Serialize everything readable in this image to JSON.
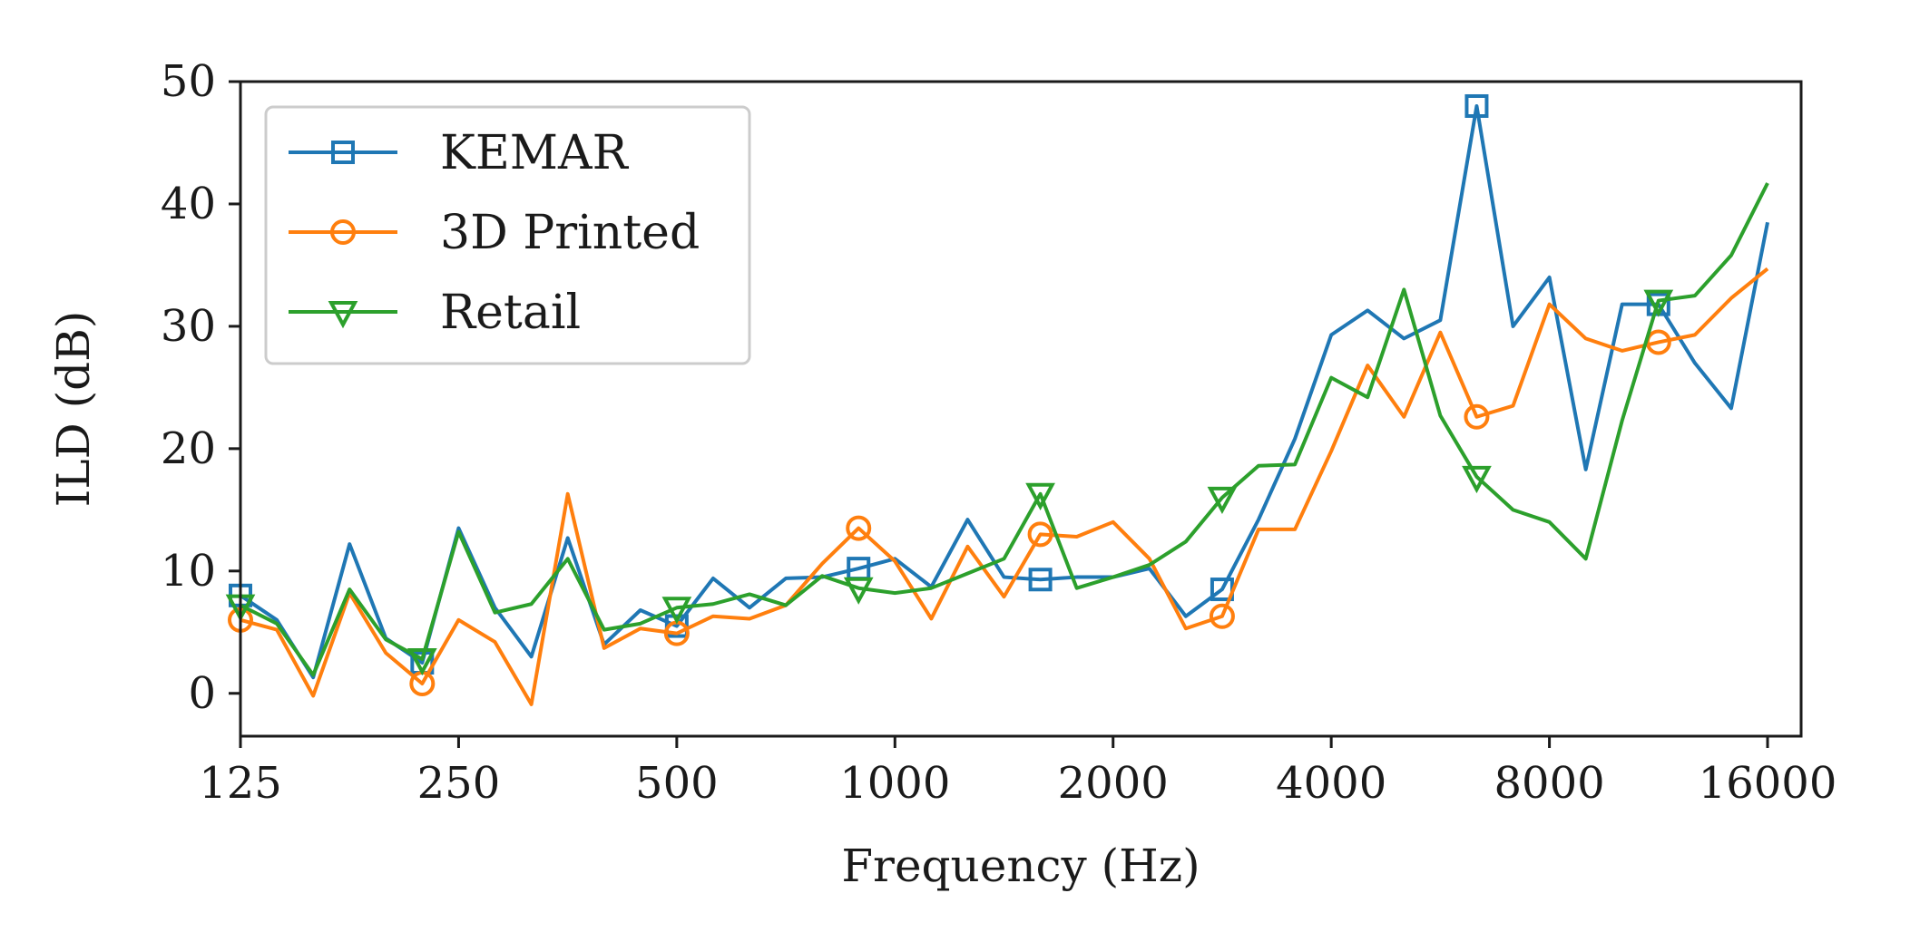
{
  "chart_data": {
    "type": "line",
    "xlabel": "Frequency (Hz)",
    "ylabel": "ILD (dB)",
    "x_scale": "log2",
    "xlim": [
      125,
      17800
    ],
    "ylim": [
      -3.5,
      50
    ],
    "x_ticks": [
      125,
      250,
      500,
      1000,
      2000,
      4000,
      8000,
      16000
    ],
    "y_ticks": [
      0,
      10,
      20,
      30,
      40,
      50
    ],
    "grid": false,
    "legend_position": "top-left",
    "x": [
      125,
      140.3,
      157.5,
      176.8,
      198.4,
      222.7,
      250,
      280.6,
      315,
      353.6,
      396.9,
      445.4,
      500,
      561.2,
      630,
      707.1,
      793.7,
      890.9,
      1000,
      1122.5,
      1259.9,
      1414.2,
      1587.4,
      1781.8,
      2000,
      2244.9,
      2519.8,
      2828.4,
      3174.8,
      3563.6,
      4000,
      4489.8,
      5039.7,
      5656.9,
      6349.6,
      7127.2,
      8000,
      8979.7,
      10079.4,
      11313.7,
      12699.2,
      14254.4,
      16000,
      17959.4
    ],
    "series": [
      {
        "name": "KEMAR",
        "color": "#1f77b4",
        "marker": "square",
        "values": [
          8,
          6,
          1.3,
          12.2,
          4.5,
          2.5,
          13.5,
          7,
          3,
          12.7,
          4,
          6.8,
          5.5,
          9.4,
          7,
          9.4,
          9.5,
          10.2,
          11,
          8.7,
          14.2,
          9.5,
          9.3,
          9.5,
          9.5,
          10.2,
          6.3,
          8.5,
          14.2,
          20.8,
          29.3,
          31.3,
          29,
          30.5,
          48,
          30,
          34,
          18.3,
          31.8,
          31.8,
          27,
          23.3,
          38.5,
          null
        ]
      },
      {
        "name": "3D Printed",
        "color": "#ff7f0e",
        "marker": "circle",
        "values": [
          6,
          5.2,
          -0.2,
          8.2,
          3.3,
          0.8,
          6,
          4.2,
          -0.9,
          16.3,
          3.7,
          5.3,
          4.9,
          6.3,
          6.1,
          7.2,
          10.6,
          13.5,
          10.8,
          6.1,
          12,
          7.9,
          13,
          12.8,
          14,
          11,
          5.3,
          6.3,
          13.4,
          13.4,
          19.8,
          26.8,
          22.6,
          29.5,
          22.6,
          23.5,
          31.8,
          29,
          28,
          28.7,
          29.3,
          32.3,
          34.7,
          null
        ]
      },
      {
        "name": "Retail",
        "color": "#2ca02c",
        "marker": "triangle-down",
        "values": [
          7.2,
          5.7,
          1.5,
          8.5,
          4.4,
          2.8,
          13.2,
          6.6,
          7.3,
          11,
          5.2,
          5.7,
          7,
          7.3,
          8.1,
          7.2,
          9.6,
          8.6,
          8.2,
          8.6,
          9.8,
          11,
          16.3,
          8.6,
          9.5,
          10.5,
          12.4,
          16,
          18.6,
          18.7,
          25.8,
          24.2,
          33,
          22.7,
          17.7,
          15,
          14,
          11,
          22.3,
          32.1,
          32.5,
          35.8,
          41.7,
          null
        ]
      }
    ],
    "marker_indices": [
      0,
      5,
      12,
      17,
      22,
      27,
      34,
      39,
      44,
      49,
      54,
      59,
      66,
      71
    ]
  }
}
